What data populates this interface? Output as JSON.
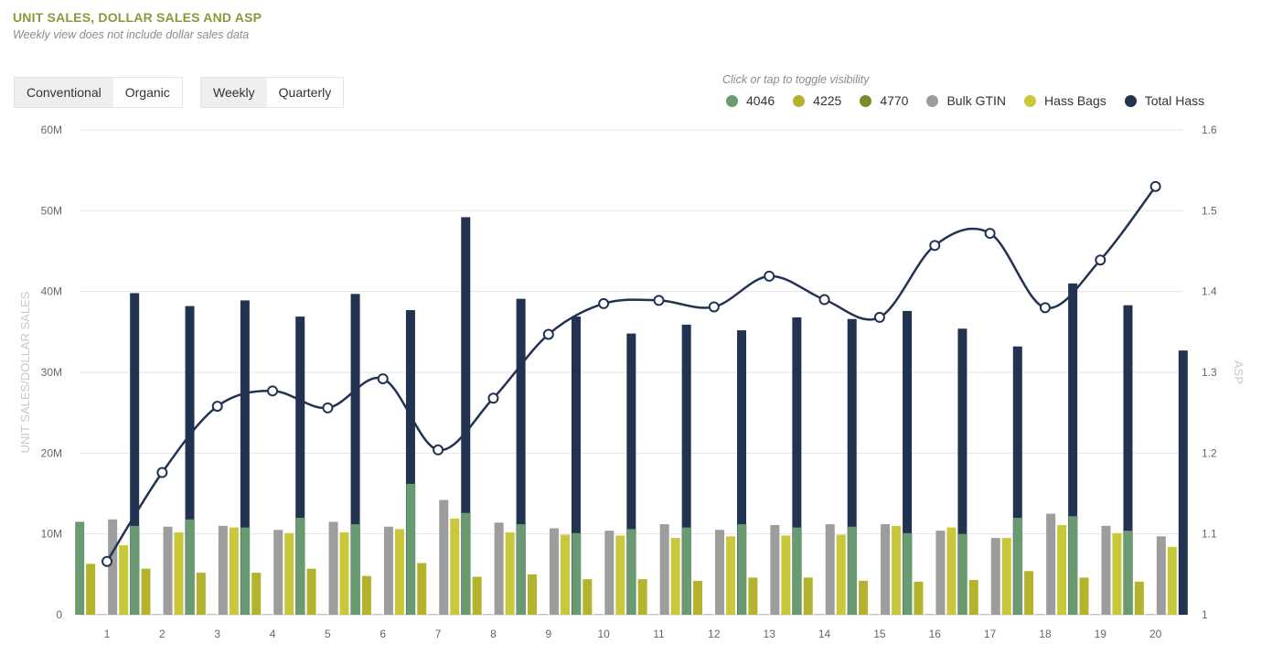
{
  "header": {
    "title": "UNIT SALES, DOLLAR SALES AND ASP",
    "subtitle": "Weekly view does not include dollar sales data"
  },
  "controls": {
    "type_toggle": [
      {
        "label": "Conventional",
        "active": true
      },
      {
        "label": "Organic",
        "active": false
      }
    ],
    "period_toggle": [
      {
        "label": "Weekly",
        "active": true
      },
      {
        "label": "Quarterly",
        "active": false
      }
    ]
  },
  "legend": {
    "hint": "Click or tap to toggle visibility",
    "items": [
      {
        "label": "4046",
        "color": "#6a9a72"
      },
      {
        "label": "4225",
        "color": "#b3b32e"
      },
      {
        "label": "4770",
        "color": "#7d8a28"
      },
      {
        "label": "Bulk GTIN",
        "color": "#9d9d9d"
      },
      {
        "label": "Hass Bags",
        "color": "#c8c83a"
      },
      {
        "label": "Total Hass",
        "color": "#223352"
      }
    ]
  },
  "chart_data": {
    "type": "bar",
    "categories": [
      "1",
      "2",
      "3",
      "4",
      "5",
      "6",
      "7",
      "8",
      "9",
      "10",
      "11",
      "12",
      "13",
      "14",
      "15",
      "16",
      "17",
      "18",
      "19",
      "20"
    ],
    "ylabel": "UNIT SALES/DOLLAR SALES",
    "y2label": "ASP",
    "ylim": [
      0,
      60000000
    ],
    "y2lim": [
      1,
      1.6
    ],
    "yticks": [
      "0",
      "10M",
      "20M",
      "30M",
      "40M",
      "50M",
      "60M"
    ],
    "y2ticks": [
      "1",
      "1.1",
      "1.2",
      "1.3",
      "1.4",
      "1.5",
      "1.6"
    ],
    "grid": true,
    "series": [
      {
        "name": "4046",
        "color": "#6a9a72",
        "values": [
          11.5,
          11.0,
          11.8,
          10.8,
          12.0,
          11.2,
          16.2,
          12.6,
          11.2,
          10.1,
          10.6,
          10.8,
          11.2,
          10.8,
          10.9,
          10.1,
          10.0,
          12.0,
          12.2,
          10.4
        ]
      },
      {
        "name": "4225",
        "color": "#b3b32e",
        "values": [
          6.3,
          5.7,
          5.2,
          5.2,
          5.7,
          4.8,
          6.4,
          4.7,
          5.0,
          4.4,
          4.4,
          4.2,
          4.6,
          4.6,
          4.2,
          4.1,
          4.3,
          5.4,
          4.6,
          4.1
        ]
      },
      {
        "name": "4770",
        "color": "#7d8a28",
        "values": [
          0.05,
          0.05,
          0.05,
          0.05,
          0.05,
          0.05,
          0.05,
          0.05,
          0.05,
          0.05,
          0.05,
          0.05,
          0.05,
          0.05,
          0.05,
          0.05,
          0.05,
          0.05,
          0.05,
          0.05
        ]
      },
      {
        "name": "Bulk GTIN",
        "color": "#9d9d9d",
        "values": [
          11.8,
          10.9,
          11.0,
          10.5,
          11.5,
          10.9,
          14.2,
          11.4,
          10.7,
          10.4,
          11.2,
          10.5,
          11.1,
          11.2,
          11.2,
          10.4,
          9.5,
          12.5,
          11.0,
          9.7
        ]
      },
      {
        "name": "Hass Bags",
        "color": "#c8c83a",
        "values": [
          8.6,
          10.2,
          10.8,
          10.1,
          10.2,
          10.6,
          11.9,
          10.2,
          9.9,
          9.8,
          9.5,
          9.7,
          9.8,
          9.9,
          11.0,
          10.8,
          9.5,
          11.1,
          10.1,
          8.4
        ]
      },
      {
        "name": "Total Hass",
        "color": "#223352",
        "values": [
          39.8,
          38.2,
          38.9,
          36.9,
          39.7,
          37.7,
          49.2,
          39.1,
          36.9,
          34.8,
          35.9,
          35.2,
          36.8,
          36.6,
          37.6,
          35.4,
          33.2,
          41.0,
          38.3,
          32.7
        ]
      }
    ],
    "line": {
      "name": "ASP",
      "axis": "right",
      "values": [
        1.066,
        1.176,
        1.258,
        1.277,
        1.256,
        1.292,
        1.204,
        1.268,
        1.347,
        1.385,
        1.389,
        1.381,
        1.419,
        1.39,
        1.368,
        1.457,
        1.472,
        1.38,
        1.439,
        1.53
      ]
    }
  }
}
